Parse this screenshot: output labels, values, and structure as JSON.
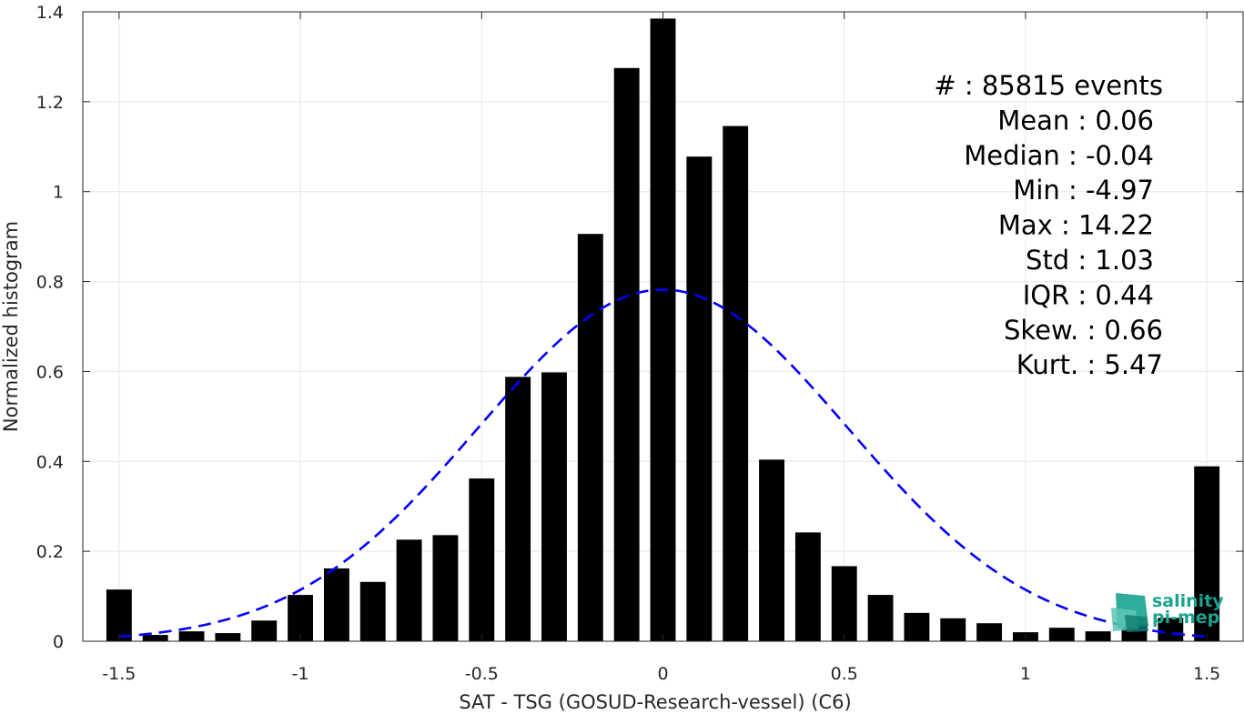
{
  "chart_data": {
    "type": "bar",
    "xlabel": "SAT - TSG (GOSUD-Research-vessel) (C6)",
    "ylabel": "Normalized histogram",
    "xlim": [
      -1.6,
      1.6
    ],
    "ylim": [
      0,
      1.4
    ],
    "xticks": [
      -1.5,
      -1,
      -0.5,
      0,
      0.5,
      1,
      1.5
    ],
    "xtick_labels": [
      "-1.5",
      "-1",
      "-0.5",
      "0",
      "0.5",
      "1",
      "1.5"
    ],
    "yticks": [
      0,
      0.2,
      0.4,
      0.6,
      0.8,
      1,
      1.2,
      1.4
    ],
    "ytick_labels": [
      "0",
      "0.2",
      "0.4",
      "0.6",
      "0.8",
      "1",
      "1.2",
      "1.4"
    ],
    "grid": true,
    "bar_width": 0.07,
    "bar_color": "#000000",
    "bars": {
      "x": [
        -1.5,
        -1.4,
        -1.3,
        -1.2,
        -1.1,
        -1.0,
        -0.9,
        -0.8,
        -0.7,
        -0.6,
        -0.5,
        -0.4,
        -0.3,
        -0.2,
        -0.1,
        0.0,
        0.1,
        0.2,
        0.3,
        0.4,
        0.5,
        0.6,
        0.7,
        0.8,
        0.9,
        1.0,
        1.1,
        1.2,
        1.3,
        1.4,
        1.5
      ],
      "values": [
        0.115,
        0.014,
        0.022,
        0.018,
        0.046,
        0.103,
        0.162,
        0.132,
        0.226,
        0.236,
        0.362,
        0.588,
        0.598,
        0.906,
        1.275,
        1.385,
        1.078,
        1.146,
        0.404,
        0.242,
        0.167,
        0.103,
        0.063,
        0.051,
        0.04,
        0.02,
        0.03,
        0.022,
        0.038,
        0.052,
        0.389
      ]
    },
    "fit_curve": {
      "type": "gaussian",
      "mean": 0.0,
      "std": 0.51,
      "peak": 0.782,
      "x_range": [
        -1.5,
        1.5
      ],
      "color": "#0000ff",
      "style": "dashed"
    },
    "stats": [
      {
        "label": "#  : 85815 events"
      },
      {
        "label": "Mean : 0.06"
      },
      {
        "label": "Median : -0.04"
      },
      {
        "label": "Min : -4.97"
      },
      {
        "label": "Max : 14.22"
      },
      {
        "label": "Std : 1.03"
      },
      {
        "label": "IQR : 0.44"
      },
      {
        "label": "Skew. : 0.66"
      },
      {
        "label": "Kurt. : 5.47"
      }
    ]
  },
  "logo": {
    "line1": "salinity",
    "line2": "pi-mep",
    "color": "#1aa38f"
  }
}
